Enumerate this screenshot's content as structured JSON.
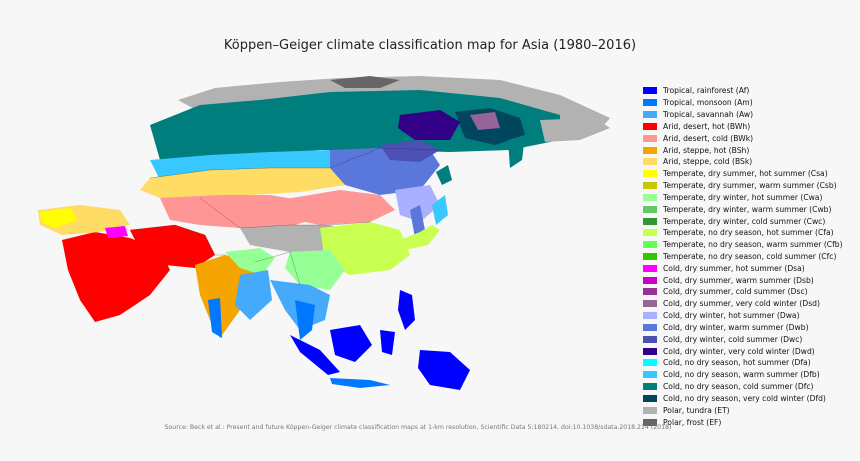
{
  "title": "Köppen–Geiger climate classification map for Asia (1980–2016)",
  "source": "Source: Beck et al.: Present and future Köppen-Geiger climate classification maps at 1-km resolution, Scientific Data 5:180214, doi:10.1038/sdata.2018.214 (2018)",
  "legend": [
    {
      "label": "Tropical, rainforest (Af)",
      "color": "#0000fe"
    },
    {
      "label": "Tropical, monsoon (Am)",
      "color": "#0078ff"
    },
    {
      "label": "Tropical, savannah (Aw)",
      "color": "#46aafa"
    },
    {
      "label": "Arid, desert, hot (BWh)",
      "color": "#fe0000"
    },
    {
      "label": "Arid, desert, cold (BWk)",
      "color": "#fe9696"
    },
    {
      "label": "Arid, steppe, hot (BSh)",
      "color": "#f5a500"
    },
    {
      "label": "Arid, steppe, cold (BSk)",
      "color": "#ffdc64"
    },
    {
      "label": "Temperate, dry summer, hot summer (Csa)",
      "color": "#ffff00"
    },
    {
      "label": "Temperate, dry summer, warm summer (Csb)",
      "color": "#c8c800"
    },
    {
      "label": "Temperate, dry winter, hot summer (Cwa)",
      "color": "#96ff96"
    },
    {
      "label": "Temperate, dry winter, warm summer (Cwb)",
      "color": "#64c864"
    },
    {
      "label": "Temperate, dry winter, cold summer (Cwc)",
      "color": "#329632"
    },
    {
      "label": "Temperate, no dry season, hot summer (Cfa)",
      "color": "#c8ff50"
    },
    {
      "label": "Temperate, no dry season, warm summer (Cfb)",
      "color": "#64ff50"
    },
    {
      "label": "Temperate, no dry season, cold summer (Cfc)",
      "color": "#32c800"
    },
    {
      "label": "Cold, dry summer, hot summer (Dsa)",
      "color": "#ff00ff"
    },
    {
      "label": "Cold, dry summer, warm summer (Dsb)",
      "color": "#c800c8"
    },
    {
      "label": "Cold, dry summer, cold summer (Dsc)",
      "color": "#963296"
    },
    {
      "label": "Cold, dry summer, very cold winter (Dsd)",
      "color": "#966496"
    },
    {
      "label": "Cold, dry winter, hot summer (Dwa)",
      "color": "#aaafff"
    },
    {
      "label": "Cold, dry winter, warm summer (Dwb)",
      "color": "#5a78dc"
    },
    {
      "label": "Cold, dry winter, cold summer (Dwc)",
      "color": "#4b50b4"
    },
    {
      "label": "Cold, dry winter, very cold winter (Dwd)",
      "color": "#320087"
    },
    {
      "label": "Cold, no dry season, hot summer (Dfa)",
      "color": "#00ffff"
    },
    {
      "label": "Cold, no dry season, warm summer (Dfb)",
      "color": "#37c8ff"
    },
    {
      "label": "Cold, no dry season, cold summer (Dfc)",
      "color": "#007d7d"
    },
    {
      "label": "Cold, no dry season, very cold winter (Dfd)",
      "color": "#00465f"
    },
    {
      "label": "Polar, tundra (ET)",
      "color": "#b2b2b2"
    },
    {
      "label": "Polar, frost (EF)",
      "color": "#666666"
    }
  ]
}
